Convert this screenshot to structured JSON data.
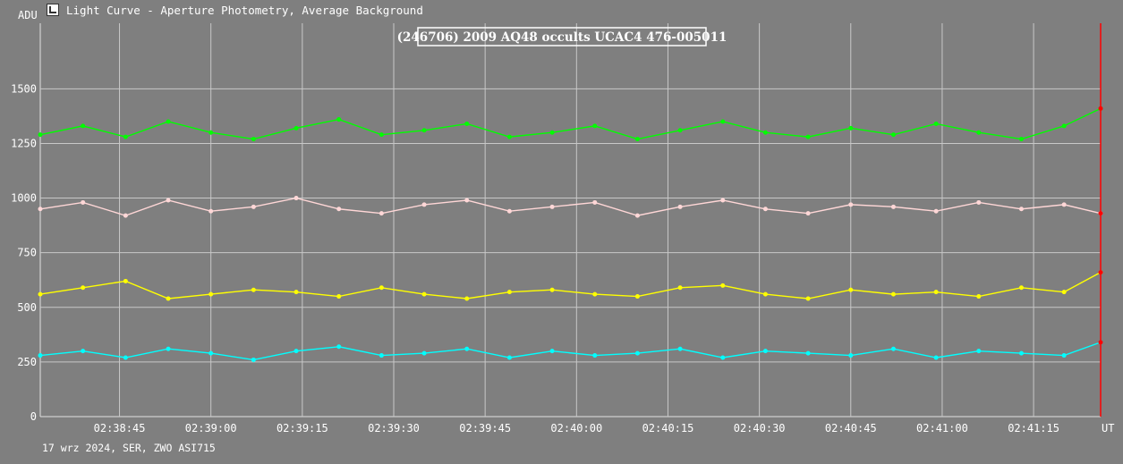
{
  "window": {
    "title": "Light Curve - Aperture Photometry, Average Background",
    "footer": "17 wrz 2024, SER, ZWO ASI715"
  },
  "colors": {
    "background": "#7f7f7f",
    "grid": "#c8c8c8",
    "axis_text": "#ffffff",
    "cursor": "#ff0000"
  },
  "chart_data": {
    "type": "line",
    "title": "(246706) 2009 AQ48 occults UCAC4 476-005011",
    "ylabel": "ADU",
    "xlabel": "UT",
    "ylim": [
      0,
      1800
    ],
    "y_ticks": [
      0,
      250,
      500,
      750,
      1000,
      1250,
      1500
    ],
    "xlim": [
      "02:38:32",
      "02:41:26"
    ],
    "x_ticks": [
      "02:38:45",
      "02:39:00",
      "02:39:15",
      "02:39:30",
      "02:39:45",
      "02:40:00",
      "02:40:15",
      "02:40:30",
      "02:40:45",
      "02:41:00",
      "02:41:15"
    ],
    "grid": true,
    "cursor_time": "02:41:26",
    "series": [
      {
        "color": "#00ff00",
        "x": [
          "02:38:32",
          "02:38:39",
          "02:38:46",
          "02:38:53",
          "02:39:00",
          "02:39:07",
          "02:39:14",
          "02:39:21",
          "02:39:28",
          "02:39:35",
          "02:39:42",
          "02:39:49",
          "02:39:56",
          "02:40:03",
          "02:40:10",
          "02:40:17",
          "02:40:24",
          "02:40:31",
          "02:40:38",
          "02:40:45",
          "02:40:52",
          "02:40:59",
          "02:41:06",
          "02:41:13",
          "02:41:20",
          "02:41:26"
        ],
        "values": [
          1290,
          1330,
          1280,
          1350,
          1300,
          1270,
          1320,
          1360,
          1290,
          1310,
          1340,
          1280,
          1300,
          1330,
          1270,
          1310,
          1350,
          1300,
          1280,
          1320,
          1290,
          1340,
          1300,
          1270,
          1330,
          1410
        ]
      },
      {
        "color": "#ffd7d7",
        "x": [
          "02:38:32",
          "02:38:39",
          "02:38:46",
          "02:38:53",
          "02:39:00",
          "02:39:07",
          "02:39:14",
          "02:39:21",
          "02:39:28",
          "02:39:35",
          "02:39:42",
          "02:39:49",
          "02:39:56",
          "02:40:03",
          "02:40:10",
          "02:40:17",
          "02:40:24",
          "02:40:31",
          "02:40:38",
          "02:40:45",
          "02:40:52",
          "02:40:59",
          "02:41:06",
          "02:41:13",
          "02:41:20",
          "02:41:26"
        ],
        "values": [
          950,
          980,
          920,
          990,
          940,
          960,
          1000,
          950,
          930,
          970,
          990,
          940,
          960,
          980,
          920,
          960,
          990,
          950,
          930,
          970,
          960,
          940,
          980,
          950,
          970,
          930
        ]
      },
      {
        "color": "#ffff00",
        "x": [
          "02:38:32",
          "02:38:39",
          "02:38:46",
          "02:38:53",
          "02:39:00",
          "02:39:07",
          "02:39:14",
          "02:39:21",
          "02:39:28",
          "02:39:35",
          "02:39:42",
          "02:39:49",
          "02:39:56",
          "02:40:03",
          "02:40:10",
          "02:40:17",
          "02:40:24",
          "02:40:31",
          "02:40:38",
          "02:40:45",
          "02:40:52",
          "02:40:59",
          "02:41:06",
          "02:41:13",
          "02:41:20",
          "02:41:26"
        ],
        "values": [
          560,
          590,
          620,
          540,
          560,
          580,
          570,
          550,
          590,
          560,
          540,
          570,
          580,
          560,
          550,
          590,
          600,
          560,
          540,
          580,
          560,
          570,
          550,
          590,
          570,
          660
        ]
      },
      {
        "color": "#00ffff",
        "x": [
          "02:38:32",
          "02:38:39",
          "02:38:46",
          "02:38:53",
          "02:39:00",
          "02:39:07",
          "02:39:14",
          "02:39:21",
          "02:39:28",
          "02:39:35",
          "02:39:42",
          "02:39:49",
          "02:39:56",
          "02:40:03",
          "02:40:10",
          "02:40:17",
          "02:40:24",
          "02:40:31",
          "02:40:38",
          "02:40:45",
          "02:40:52",
          "02:40:59",
          "02:41:06",
          "02:41:13",
          "02:41:20",
          "02:41:26"
        ],
        "values": [
          280,
          300,
          270,
          310,
          290,
          260,
          300,
          320,
          280,
          290,
          310,
          270,
          300,
          280,
          290,
          310,
          270,
          300,
          290,
          280,
          310,
          270,
          300,
          290,
          280,
          340
        ]
      }
    ]
  }
}
